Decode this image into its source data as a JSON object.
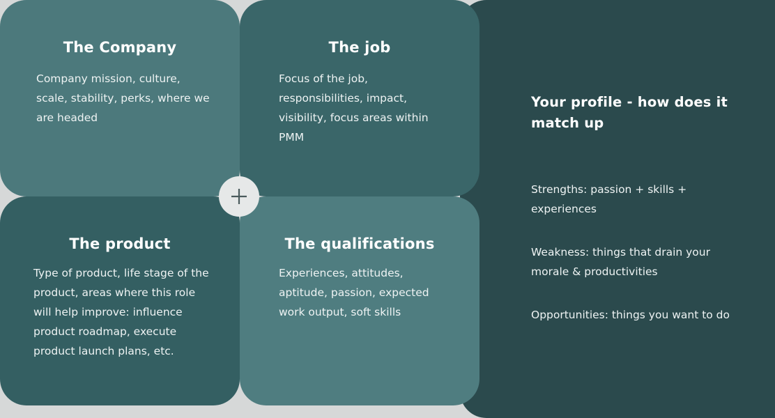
{
  "cards": {
    "company": {
      "title": "The Company",
      "body": "Company mission, culture, scale, stability, perks, where we are headed"
    },
    "job": {
      "title": "The job",
      "body": "Focus of the job, responsibilities, impact, visibility, focus areas within PMM"
    },
    "product": {
      "title": "The product",
      "body": "Type of product, life stage of the product, areas where this role will help improve: influence product roadmap, execute product launch plans, etc."
    },
    "qualifications": {
      "title": "The qualifications",
      "body": "Experiences, attitudes, aptitude, passion, expected work output, soft skills"
    },
    "profile": {
      "title": "Your profile - how does it match up",
      "items": [
        "Strengths: passion + skills + experiences",
        "Weakness: things that drain your morale & productivities",
        "Opportunities: things you want to do"
      ]
    }
  },
  "colors": {
    "company": "#4c797c",
    "job": "#3a6669",
    "product": "#345f62",
    "qualifications": "#4f7d80",
    "profile": "#2b4a4d",
    "plus": "#e6e8e8"
  },
  "icons": {
    "center": "plus-icon"
  }
}
